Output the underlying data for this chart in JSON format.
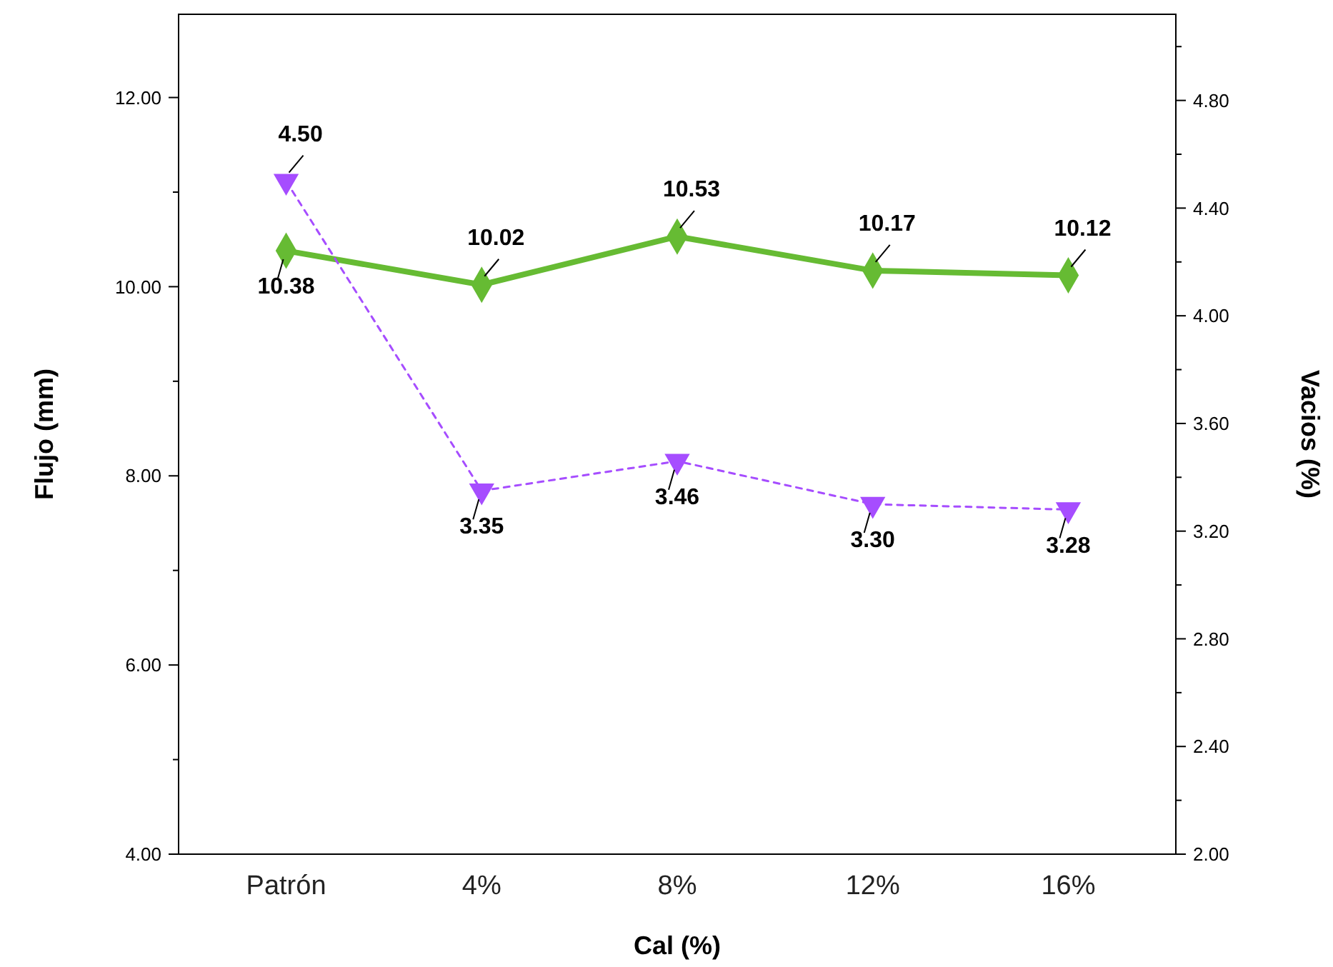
{
  "chart_data": {
    "type": "line",
    "xlabel": "Cal (%)",
    "ylabel": "Flujo (mm)",
    "y2label": "Vacios (%)",
    "categories": [
      "Patrón",
      "4%",
      "8%",
      "12%",
      "16%"
    ],
    "series": [
      {
        "color": "#66bb33",
        "values": [
          10.38,
          10.02,
          10.53,
          10.17,
          10.12
        ],
        "value_labels": [
          "10.38",
          "10.02",
          "10.53",
          "10.17",
          "10.12"
        ],
        "marker": "diamond",
        "line_style": "solid"
      },
      {
        "color": "#a64dff",
        "values": [
          4.5,
          3.35,
          3.46,
          3.3,
          3.28
        ],
        "value_labels": [
          "4.50",
          "3.35",
          "3.46",
          "3.30",
          "3.28"
        ],
        "marker": "triangle",
        "line_style": "dashed",
        "axis": "y2"
      }
    ],
    "ylim": [
      4,
      12.88
    ],
    "yticks": [
      {
        "value": 4,
        "label": "4.00"
      },
      {
        "value": 5,
        "label": null
      },
      {
        "value": 6,
        "label": "6.00"
      },
      {
        "value": 7,
        "label": null
      },
      {
        "value": 8,
        "label": "8.00"
      },
      {
        "value": 9,
        "label": null
      },
      {
        "value": 10,
        "label": "10.00"
      },
      {
        "value": 11,
        "label": null
      },
      {
        "value": 12,
        "label": "12.00"
      }
    ],
    "y2lim": [
      2,
      5.12
    ],
    "y2ticks": [
      {
        "value": 2,
        "label": "2.00"
      },
      {
        "value": 2.2,
        "label": null
      },
      {
        "value": 2.4,
        "label": "2.40"
      },
      {
        "value": 2.6,
        "label": null
      },
      {
        "value": 2.8,
        "label": "2.80"
      },
      {
        "value": 3,
        "label": null
      },
      {
        "value": 3.2,
        "label": "3.20"
      },
      {
        "value": 3.4,
        "label": null
      },
      {
        "value": 3.6,
        "label": "3.60"
      },
      {
        "value": 3.8,
        "label": null
      },
      {
        "value": 4,
        "label": "4.00"
      },
      {
        "value": 4.2,
        "label": null
      },
      {
        "value": 4.4,
        "label": "4.40"
      },
      {
        "value": 4.6,
        "label": null
      },
      {
        "value": 4.8,
        "label": "4.80"
      },
      {
        "value": 5,
        "label": null
      }
    ],
    "grid": false
  }
}
